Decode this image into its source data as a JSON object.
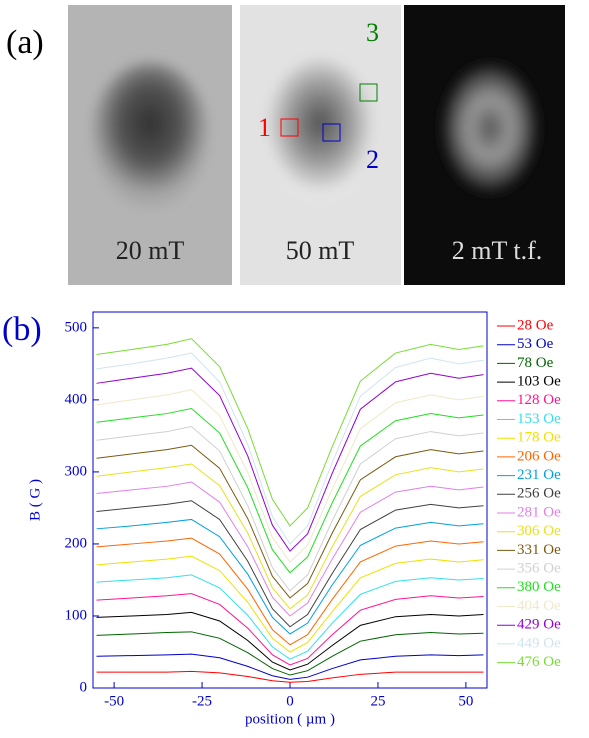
{
  "panel_a": {
    "label": "(a)",
    "images": [
      {
        "label": "20 mT"
      },
      {
        "label": "50 mT"
      },
      {
        "label": "2 mT t.f."
      }
    ],
    "regions": [
      {
        "label": "1",
        "color": "#ff0000"
      },
      {
        "label": "2",
        "color": "#0000cc"
      },
      {
        "label": "3",
        "color": "#008000"
      }
    ]
  },
  "chart_data": {
    "type": "line",
    "panel_label": "(b)",
    "x_label": "position ( µm )",
    "y_label": "B ( G )",
    "xlim": [
      -56,
      56
    ],
    "ylim": [
      0,
      522
    ],
    "xticks": [
      -50,
      -25,
      0,
      25,
      50
    ],
    "yticks": [
      0,
      100,
      200,
      300,
      400,
      500
    ],
    "x": [
      -55,
      -45,
      -35,
      -28,
      -20,
      -12,
      -5,
      0,
      5,
      12,
      20,
      30,
      40,
      48,
      55
    ],
    "series": [
      {
        "name": "28 Oe",
        "color": "#ff0000",
        "values": [
          22,
          22,
          22,
          23,
          21,
          16,
          10,
          8,
          9,
          14,
          19,
          22,
          22,
          22,
          22
        ]
      },
      {
        "name": "53 Oe",
        "color": "#0000cc",
        "values": [
          44,
          45,
          46,
          47,
          42,
          30,
          17,
          12,
          15,
          27,
          39,
          44,
          46,
          45,
          46
        ]
      },
      {
        "name": "78 Oe",
        "color": "#006400",
        "values": [
          73,
          75,
          77,
          78,
          69,
          49,
          27,
          18,
          24,
          44,
          65,
          74,
          77,
          75,
          76
        ]
      },
      {
        "name": "103 Oe",
        "color": "#000000",
        "values": [
          98,
          100,
          102,
          105,
          93,
          66,
          36,
          25,
          33,
          59,
          87,
          99,
          102,
          100,
          102
        ]
      },
      {
        "name": "128 Oe",
        "color": "#ff1493",
        "values": [
          122,
          125,
          128,
          131,
          116,
          83,
          46,
          32,
          41,
          74,
          108,
          123,
          128,
          125,
          127
        ]
      },
      {
        "name": "153 Oe",
        "color": "#33e0f0",
        "values": [
          147,
          150,
          153,
          157,
          139,
          101,
          57,
          40,
          51,
          90,
          130,
          148,
          153,
          150,
          152
        ]
      },
      {
        "name": "178 Oe",
        "color": "#f0e000",
        "values": [
          171,
          175,
          179,
          183,
          163,
          119,
          69,
          50,
          63,
          106,
          153,
          173,
          179,
          175,
          178
        ]
      },
      {
        "name": "206 Oe",
        "color": "#ff6600",
        "values": [
          196,
          200,
          204,
          208,
          186,
          137,
          81,
          60,
          74,
          123,
          175,
          197,
          204,
          200,
          203
        ]
      },
      {
        "name": "231 Oe",
        "color": "#00a0e0",
        "values": [
          221,
          225,
          230,
          234,
          210,
          158,
          98,
          75,
          90,
          143,
          198,
          222,
          230,
          225,
          228
        ]
      },
      {
        "name": "256 Oe",
        "color": "#404040",
        "values": [
          245,
          250,
          255,
          260,
          234,
          176,
          110,
          85,
          102,
          159,
          220,
          247,
          255,
          250,
          253
        ]
      },
      {
        "name": "281 Oe",
        "color": "#e080e8",
        "values": [
          270,
          275,
          280,
          286,
          258,
          196,
          126,
          100,
          118,
          179,
          244,
          272,
          280,
          275,
          279
        ]
      },
      {
        "name": "306 Oe",
        "color": "#e8e020",
        "values": [
          294,
          300,
          306,
          311,
          281,
          215,
          139,
          110,
          129,
          196,
          266,
          296,
          306,
          300,
          304
        ]
      },
      {
        "name": "331 Oe",
        "color": "#7a5a10",
        "values": [
          319,
          325,
          331,
          337,
          305,
          235,
          155,
          125,
          145,
          215,
          289,
          321,
          331,
          325,
          329
        ]
      },
      {
        "name": "356 Oe",
        "color": "#d0d0d0",
        "values": [
          344,
          350,
          356,
          363,
          329,
          253,
          167,
          135,
          157,
          232,
          311,
          346,
          356,
          350,
          354
        ]
      },
      {
        "name": "380 Oe",
        "color": "#22dd22",
        "values": [
          369,
          375,
          381,
          388,
          354,
          278,
          192,
          160,
          182,
          257,
          336,
          371,
          381,
          375,
          379
        ]
      },
      {
        "name": "404 Oe",
        "color": "#f0e8c8",
        "values": [
          393,
          400,
          407,
          414,
          378,
          299,
          209,
          175,
          198,
          276,
          360,
          396,
          407,
          400,
          405
        ]
      },
      {
        "name": "429 Oe",
        "color": "#9400d3",
        "values": [
          423,
          430,
          437,
          444,
          406,
          322,
          226,
          190,
          214,
          298,
          387,
          425,
          437,
          430,
          435
        ]
      },
      {
        "name": "449 Oe",
        "color": "#d0e4ee",
        "values": [
          443,
          450,
          458,
          465,
          425,
          338,
          238,
          200,
          225,
          313,
          405,
          445,
          458,
          450,
          455
        ]
      },
      {
        "name": "476 Oe",
        "color": "#77dd33",
        "values": [
          463,
          470,
          477,
          485,
          446,
          360,
          262,
          225,
          250,
          335,
          426,
          465,
          477,
          470,
          475
        ]
      }
    ]
  }
}
